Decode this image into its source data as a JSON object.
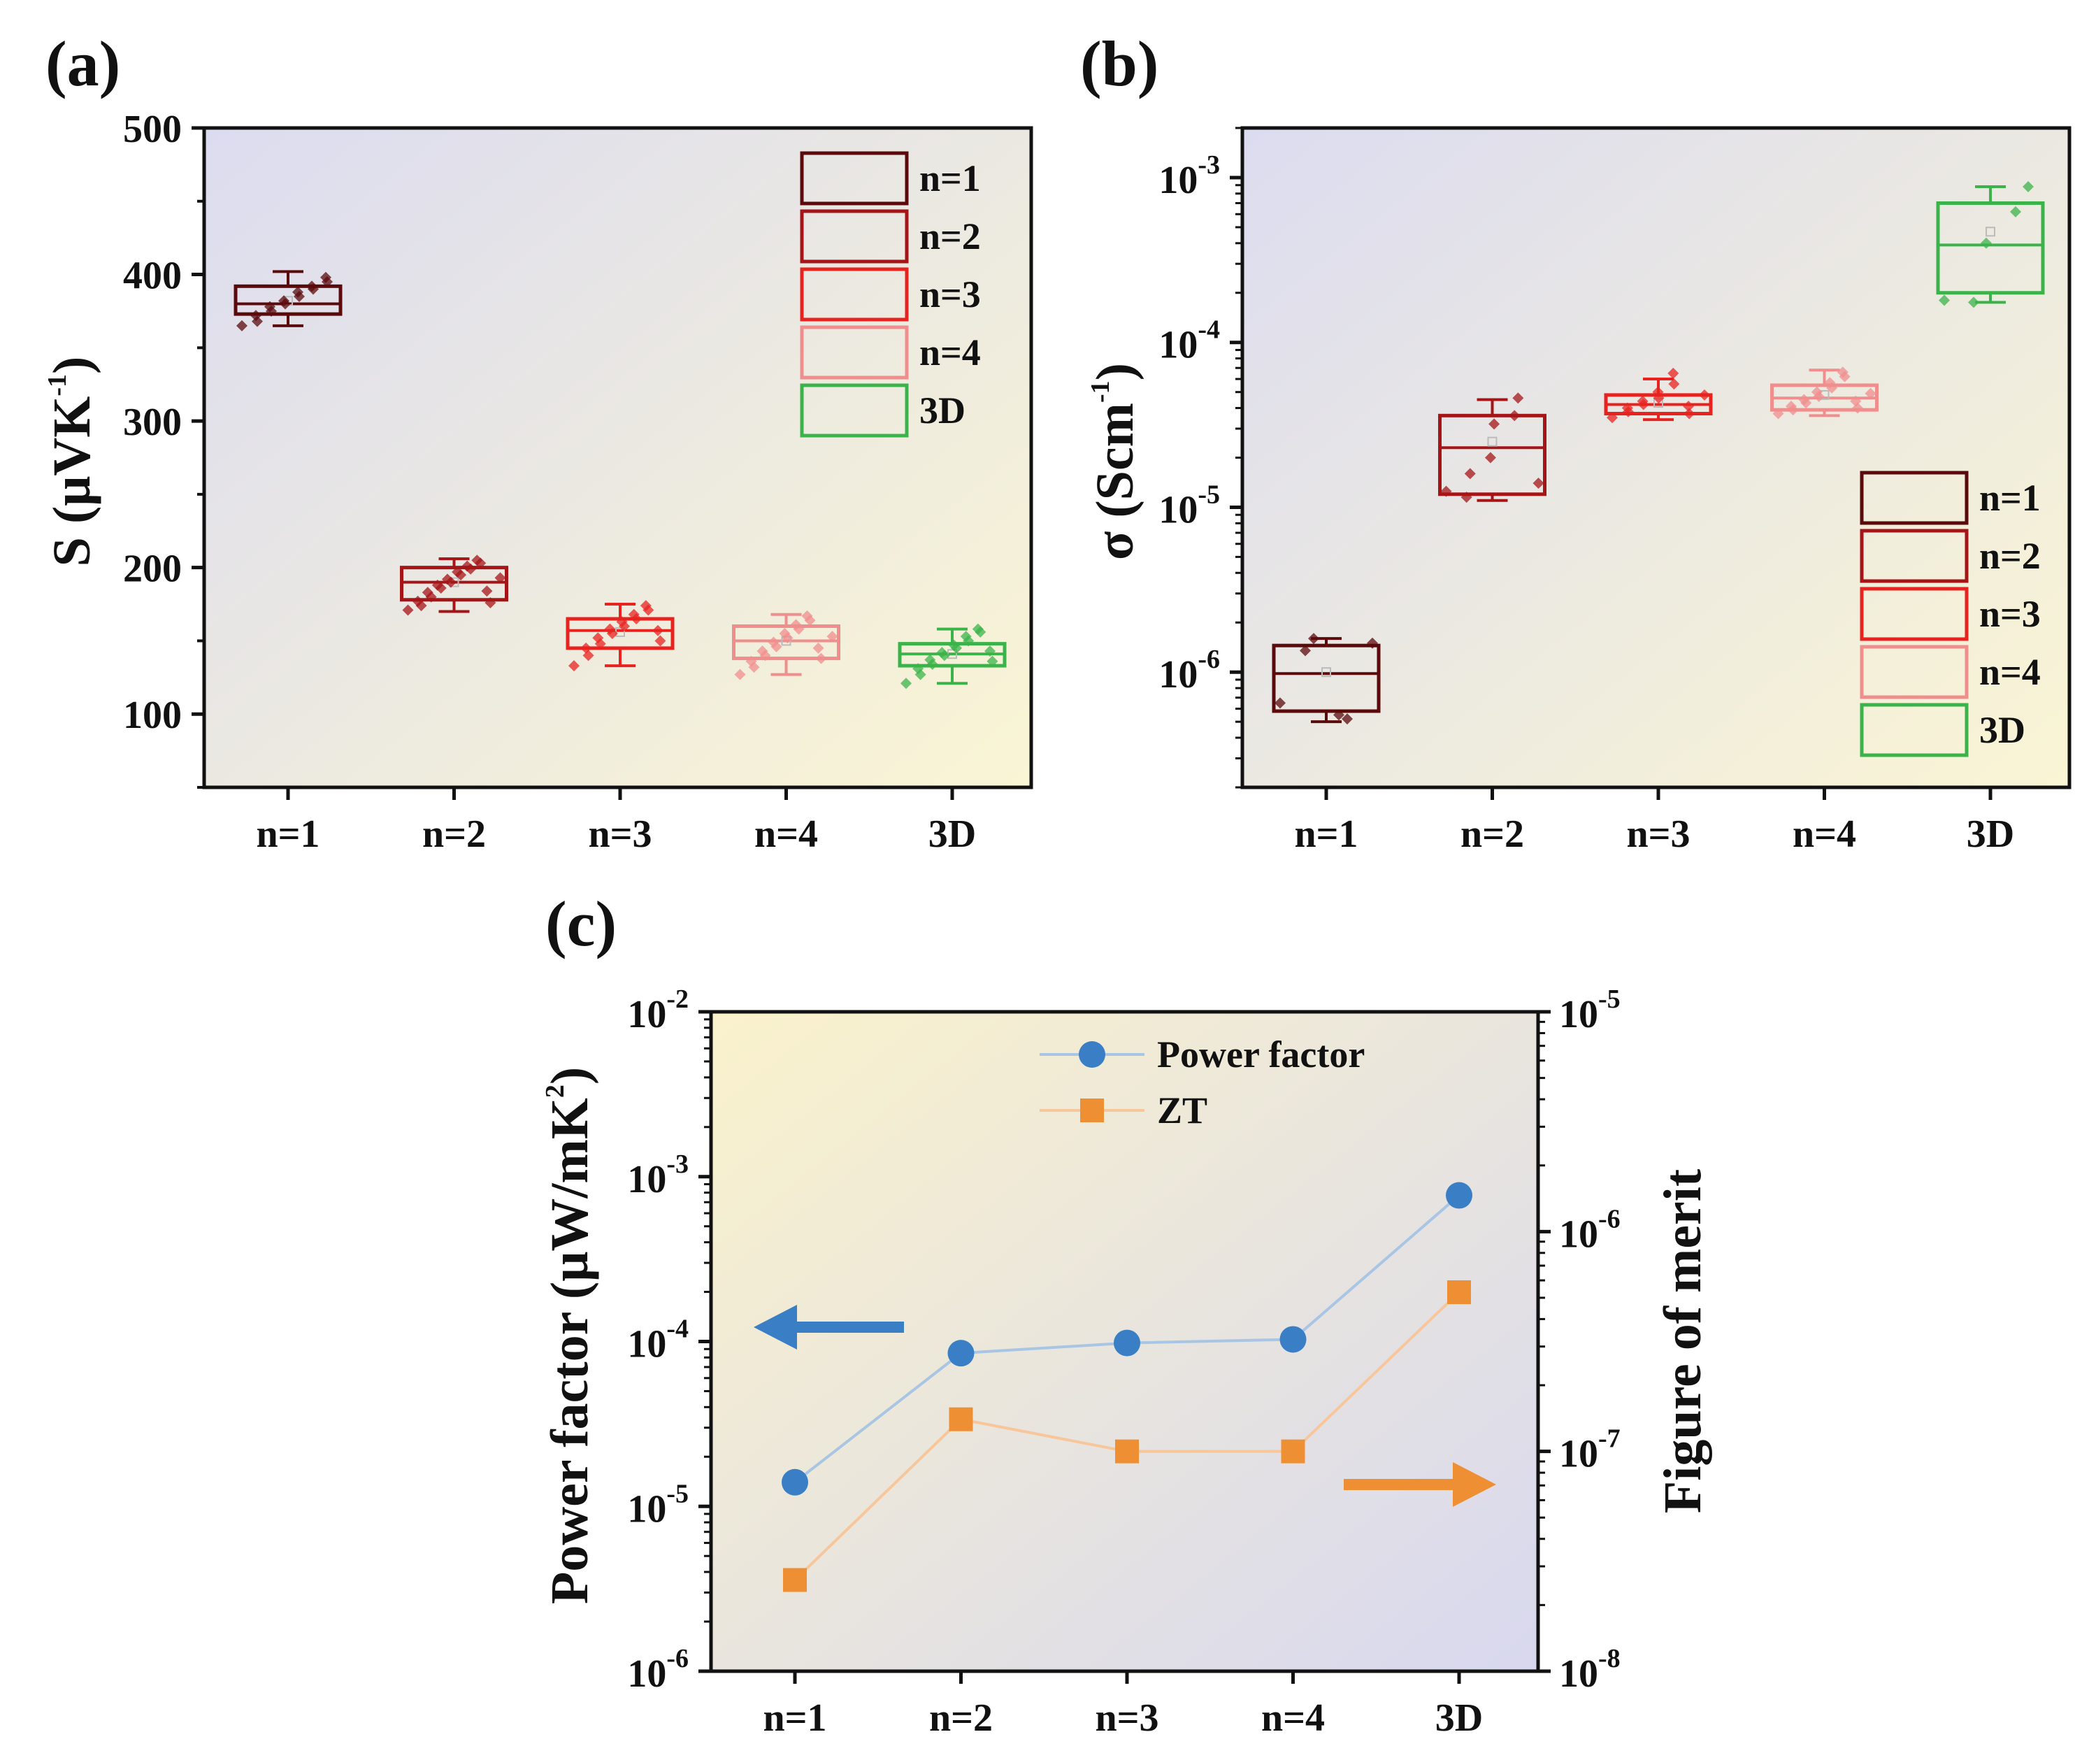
{
  "chart_data": [
    {
      "id": "a",
      "panel_label": "(a)",
      "type": "box",
      "categories": [
        "n=1",
        "n=2",
        "n=3",
        "n=4",
        "3D"
      ],
      "ylabel": "S (μVK⁻¹)",
      "ylabel_parts": {
        "main": "S (μVK",
        "sup": "-1",
        "close": ")"
      },
      "ylim": [
        50,
        500
      ],
      "yscale": "linear",
      "yticks": [
        100,
        200,
        300,
        400,
        500
      ],
      "ytick_labels": [
        "100",
        "200",
        "300",
        "400",
        "500"
      ],
      "legend": {
        "position": "top-right",
        "entries": [
          "n=1",
          "n=2",
          "n=3",
          "n=4",
          "3D"
        ]
      },
      "boxes": [
        {
          "category": "n=1",
          "q1": 373,
          "median": 380,
          "q3": 392,
          "whisker_low": 365,
          "whisker_high": 402,
          "mean": 382,
          "points": [
            365,
            368,
            372,
            375,
            378,
            380,
            382,
            385,
            388,
            390,
            392,
            395,
            398
          ]
        },
        {
          "category": "n=2",
          "q1": 178,
          "median": 190,
          "q3": 200,
          "whisker_low": 170,
          "whisker_high": 206,
          "mean": 190,
          "points": [
            171,
            174,
            177,
            180,
            183,
            186,
            188,
            190,
            192,
            195,
            197,
            199,
            201,
            203,
            205,
            176,
            184,
            193
          ]
        },
        {
          "category": "n=3",
          "q1": 145,
          "median": 157,
          "q3": 165,
          "whisker_low": 133,
          "whisker_high": 175,
          "mean": 156,
          "points": [
            133,
            140,
            145,
            148,
            152,
            155,
            158,
            160,
            163,
            165,
            168,
            171,
            174,
            150,
            157
          ]
        },
        {
          "category": "n=4",
          "q1": 138,
          "median": 150,
          "q3": 160,
          "whisker_low": 127,
          "whisker_high": 168,
          "mean": 150,
          "points": [
            127,
            132,
            136,
            140,
            143,
            146,
            149,
            152,
            155,
            158,
            161,
            164,
            167,
            138,
            145,
            153
          ]
        },
        {
          "category": "3D",
          "q1": 133,
          "median": 141,
          "q3": 148,
          "whisker_low": 121,
          "whisker_high": 158,
          "mean": 141,
          "points": [
            121,
            127,
            131,
            134,
            137,
            140,
            142,
            145,
            147,
            150,
            153,
            156,
            158,
            136,
            143
          ]
        }
      ]
    },
    {
      "id": "b",
      "panel_label": "(b)",
      "type": "box",
      "categories": [
        "n=1",
        "n=2",
        "n=3",
        "n=4",
        "3D"
      ],
      "ylabel": "σ (Scm⁻¹)",
      "ylabel_parts": {
        "main": "σ (Scm",
        "sup": "-1",
        "close": ")"
      },
      "ylim": [
        2e-07,
        0.002
      ],
      "yscale": "log",
      "yticks": [
        1e-06,
        1e-05,
        0.0001,
        0.001
      ],
      "ytick_labels": [
        {
          "base": "10",
          "exp": "-6"
        },
        {
          "base": "10",
          "exp": "-5"
        },
        {
          "base": "10",
          "exp": "-4"
        },
        {
          "base": "10",
          "exp": "-3"
        }
      ],
      "legend": {
        "position": "bottom-right",
        "entries": [
          "n=1",
          "n=2",
          "n=3",
          "n=4",
          "3D"
        ]
      },
      "boxes": [
        {
          "category": "n=1",
          "q1": 5.8e-07,
          "median": 9.8e-07,
          "q3": 1.45e-06,
          "whisker_low": 5e-07,
          "whisker_high": 1.6e-06,
          "mean": 1e-06,
          "points": [
            6.5e-07,
            1.35e-06,
            1.6e-06,
            5.5e-07,
            5.2e-07,
            1.5e-06
          ]
        },
        {
          "category": "n=2",
          "q1": 1.2e-05,
          "median": 2.3e-05,
          "q3": 3.6e-05,
          "whisker_low": 1.1e-05,
          "whisker_high": 4.5e-05,
          "mean": 2.5e-05,
          "points": [
            1.25e-05,
            1.15e-05,
            1.6e-05,
            2e-05,
            3.2e-05,
            3.6e-05,
            4.6e-05,
            1.4e-05
          ]
        },
        {
          "category": "n=3",
          "q1": 3.7e-05,
          "median": 4.2e-05,
          "q3": 4.8e-05,
          "whisker_low": 3.4e-05,
          "whisker_high": 6e-05,
          "mean": 4.3e-05,
          "points": [
            3.5e-05,
            3.8e-05,
            4e-05,
            4.2e-05,
            4.4e-05,
            4.6e-05,
            5e-05,
            5.6e-05,
            6.5e-05,
            3.7e-05,
            4.1e-05,
            4.8e-05
          ]
        },
        {
          "category": "n=4",
          "q1": 3.9e-05,
          "median": 4.6e-05,
          "q3": 5.5e-05,
          "whisker_low": 3.6e-05,
          "whisker_high": 6.8e-05,
          "mean": 4.8e-05,
          "points": [
            3.7e-05,
            3.9e-05,
            4.1e-05,
            4.3e-05,
            4.5e-05,
            4.7e-05,
            5e-05,
            5.3e-05,
            5.7e-05,
            6.2e-05,
            6.6e-05,
            4e-05,
            4.4e-05,
            4.9e-05
          ]
        },
        {
          "category": "3D",
          "q1": 0.0002,
          "median": 0.00039,
          "q3": 0.0007,
          "whisker_low": 0.000175,
          "whisker_high": 0.00088,
          "mean": 0.00047,
          "points": [
            0.00018,
            0.000175,
            0.0004,
            0.00062,
            0.00088
          ]
        }
      ]
    },
    {
      "id": "c",
      "panel_label": "(c)",
      "type": "line",
      "categories": [
        "n=1",
        "n=2",
        "n=3",
        "n=4",
        "3D"
      ],
      "ylabel_left": "Power factor (μW/mK²)",
      "ylabel_left_parts": {
        "main": "Power factor (μW/mK",
        "sup": "2",
        "close": ")"
      },
      "ylabel_right": "Figure of merit",
      "ylim_left": [
        1e-06,
        0.01
      ],
      "ylim_right": [
        1e-08,
        1e-05
      ],
      "yscale": "log",
      "yticks_left": [
        {
          "value": 1e-06,
          "base": "10",
          "exp": "-6"
        },
        {
          "value": 1e-05,
          "base": "10",
          "exp": "-5"
        },
        {
          "value": 0.0001,
          "base": "10",
          "exp": "-4"
        },
        {
          "value": 0.001,
          "base": "10",
          "exp": "-3"
        },
        {
          "value": 0.01,
          "base": "10",
          "exp": "-2"
        }
      ],
      "yticks_right": [
        {
          "value": 1e-08,
          "base": "10",
          "exp": "-8"
        },
        {
          "value": 1e-07,
          "base": "10",
          "exp": "-7"
        },
        {
          "value": 1e-06,
          "base": "10",
          "exp": "-6"
        },
        {
          "value": 1e-05,
          "base": "10",
          "exp": "-5"
        }
      ],
      "legend": {
        "position": "top-right"
      },
      "series": [
        {
          "name": "Power factor",
          "axis": "left",
          "marker": "circle",
          "color": "#3a7fc6",
          "line_color": "#a9c5e4",
          "values": [
            1.4e-05,
            8.5e-05,
            9.8e-05,
            0.000103,
            0.00077
          ]
        },
        {
          "name": "ZT",
          "axis": "right",
          "marker": "square",
          "color": "#ef8f33",
          "line_color": "#f7c69a",
          "values": [
            2.6e-08,
            1.4e-07,
            1e-07,
            1e-07,
            5.3e-07
          ]
        }
      ],
      "arrows": [
        {
          "direction": "left",
          "points_to": "left axis",
          "color": "#3a7fc6"
        },
        {
          "direction": "right",
          "points_to": "right axis",
          "color": "#ef8f33"
        }
      ]
    }
  ],
  "colors": {
    "n1": "#5b0a0c",
    "n2": "#a51417",
    "n3": "#e8231f",
    "n4": "#f08e8e",
    "d3": "#3bb34a",
    "axis": "#111111"
  }
}
